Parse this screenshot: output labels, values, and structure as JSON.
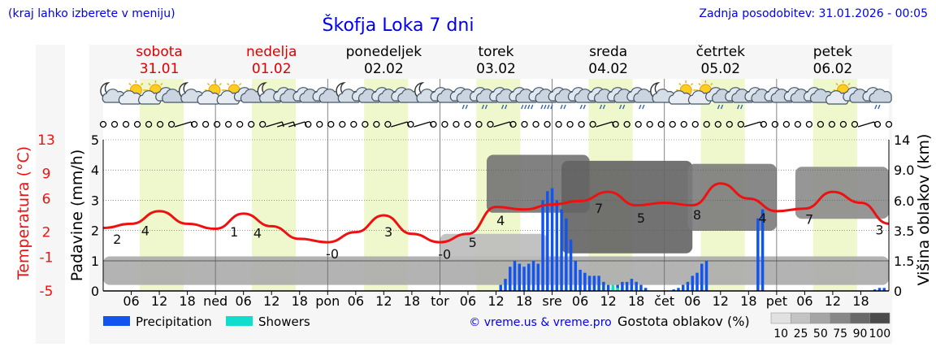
{
  "header": {
    "region_hint": "(kraj lahko izberete v meniju)",
    "title": "Škofja Loka 7 dni",
    "updated": "Zadnja posodobitev: 31.01.2026 - 00:05"
  },
  "colors": {
    "weekend_text": "#dd0000",
    "weekday_text": "#000000",
    "temp_line": "#ee1111",
    "precip_bar": "#1155ee",
    "showers_bar": "#11ddcc",
    "day_band": "#eef8cc",
    "link": "#0000ee"
  },
  "days": [
    {
      "name": "sobota",
      "date": "31.01",
      "weekend": true
    },
    {
      "name": "nedelja",
      "date": "01.02",
      "weekend": true
    },
    {
      "name": "ponedeljek",
      "date": "02.02",
      "weekend": false
    },
    {
      "name": "torek",
      "date": "03.02",
      "weekend": false
    },
    {
      "name": "sreda",
      "date": "04.02",
      "weekend": false
    },
    {
      "name": "četrtek",
      "date": "05.02",
      "weekend": false
    },
    {
      "name": "petek",
      "date": "06.02",
      "weekend": false
    }
  ],
  "weather_icons": [
    "night-cloudy",
    "day-partly-cloudy",
    "day-partly-cloudy",
    "cloudy",
    "night-cloudy",
    "day-partly-cloudy",
    "day-partly-cloudy",
    "cloudy",
    "night-cloudy",
    "cloudy",
    "cloudy",
    "cloudy",
    "night-cloudy",
    "cloudy",
    "cloudy",
    "cloudy",
    "night-cloudy",
    "cloudy",
    "light-rain",
    "light-rain",
    "light-rain",
    "heavy-rain",
    "heavy-rain",
    "light-rain",
    "light-rain",
    "light-rain",
    "light-rain",
    "light-rain",
    "night-cloudy",
    "day-partly-cloudy",
    "day-partly-cloudy",
    "light-rain",
    "light-rain",
    "cloudy",
    "cloudy",
    "cloudy",
    "cloudy",
    "day-partly-cloudy",
    "cloudy",
    "light-rain"
  ],
  "wind_markers": [
    "calm",
    "calm",
    "calm",
    "calm",
    "calm",
    "calm",
    "calm",
    "wind",
    "calm",
    "calm",
    "calm",
    "calm",
    "calm",
    "calm",
    "calm",
    "wind",
    "wind",
    "wind",
    "calm",
    "calm",
    "calm",
    "calm",
    "calm",
    "calm",
    "calm",
    "calm",
    "wind",
    "calm",
    "wind",
    "calm",
    "calm",
    "calm",
    "calm",
    "calm",
    "calm",
    "wind",
    "calm",
    "calm",
    "calm",
    "calm",
    "calm",
    "calm",
    "calm",
    "calm",
    "wind",
    "calm",
    "calm",
    "calm",
    "calm",
    "calm",
    "calm",
    "calm",
    "calm",
    "calm",
    "calm",
    "calm",
    "calm",
    "wind",
    "calm",
    "calm",
    "calm",
    "calm",
    "calm",
    "calm",
    "calm",
    "calm",
    "calm",
    "wind",
    "calm",
    "calm"
  ],
  "legend": {
    "precipitation": "Precipitation",
    "showers": "Showers",
    "credit": "© vreme.us & vreme.pro",
    "cloud_density_label": "Gostota oblakov (%)",
    "density_steps": [
      "10",
      "25",
      "50",
      "75",
      "90",
      "100"
    ]
  },
  "chart_data": {
    "type": "meteogram",
    "title": "Škofja Loka 7 dni",
    "time_axis": {
      "start": "31.01.2026 00:00",
      "hours": 168,
      "step_hours": 6,
      "tick_labels": [
        "06",
        "12",
        "18",
        "ned",
        "06",
        "12",
        "18",
        "pon",
        "06",
        "12",
        "18",
        "tor",
        "06",
        "12",
        "18",
        "sre",
        "06",
        "12",
        "18",
        "čet",
        "06",
        "12",
        "18",
        "pet",
        "06",
        "12",
        "18"
      ]
    },
    "axes": {
      "precip_label": "Padavine (mm/h)",
      "precip_ylim": [
        0,
        5
      ],
      "precip_ticks": [
        "0",
        "1",
        "2",
        "3",
        "4",
        "5"
      ],
      "temp_label": "Temperatura (°C)",
      "temp_ticks": [
        "-5",
        "-1",
        "2",
        "6",
        "9",
        "13"
      ],
      "cloud_label": "Višina oblakov (km)",
      "cloud_ylim": [
        0,
        15
      ],
      "cloud_ticks": [
        "0",
        "1.5",
        "3.5",
        "6.0",
        "9.0",
        "14"
      ]
    },
    "temperature": {
      "name": "Temperatura",
      "hours": [
        0,
        6,
        12,
        18,
        24,
        30,
        36,
        42,
        48,
        54,
        60,
        66,
        72,
        78,
        84,
        90,
        96,
        102,
        108,
        114,
        120,
        126,
        132,
        138,
        144,
        150,
        156,
        162,
        168
      ],
      "values": [
        2.5,
        3.0,
        4.5,
        3.0,
        2.4,
        4.2,
        2.7,
        1.2,
        0.8,
        2.0,
        4.0,
        1.8,
        0.8,
        1.8,
        5.0,
        4.7,
        5.3,
        5.7,
        6.8,
        5.2,
        5.5,
        5.2,
        7.8,
        6.0,
        4.5,
        4.8,
        6.8,
        5.5,
        3.0
      ],
      "value_labels": [
        {
          "hour": 3,
          "text": "2"
        },
        {
          "hour": 9,
          "text": "4"
        },
        {
          "hour": 28,
          "text": "1"
        },
        {
          "hour": 33,
          "text": "4"
        },
        {
          "hour": 49,
          "text": "-0"
        },
        {
          "hour": 61,
          "text": "3"
        },
        {
          "hour": 73,
          "text": "-0"
        },
        {
          "hour": 79,
          "text": "5"
        },
        {
          "hour": 85,
          "text": "4"
        },
        {
          "hour": 106,
          "text": "7"
        },
        {
          "hour": 115,
          "text": "5"
        },
        {
          "hour": 127,
          "text": "8"
        },
        {
          "hour": 141,
          "text": "4"
        },
        {
          "hour": 151,
          "text": "7"
        },
        {
          "hour": 166,
          "text": "3"
        }
      ]
    },
    "precipitation": {
      "name": "Precipitation",
      "hours": [
        85,
        86,
        87,
        88,
        89,
        90,
        91,
        92,
        93,
        94,
        95,
        96,
        97,
        98,
        99,
        100,
        101,
        102,
        103,
        104,
        105,
        106,
        107,
        108,
        109,
        110,
        111,
        112,
        113,
        114,
        115,
        116,
        122,
        123,
        124,
        125,
        126,
        127,
        128,
        129,
        140,
        141,
        165,
        166,
        167
      ],
      "values": [
        0.2,
        0.4,
        0.8,
        1.0,
        0.9,
        0.8,
        0.9,
        1.0,
        0.9,
        3.0,
        3.3,
        3.4,
        3.0,
        2.7,
        2.4,
        1.7,
        1.0,
        0.7,
        0.6,
        0.5,
        0.5,
        0.5,
        0.3,
        0.2,
        0.1,
        0.2,
        0.3,
        0.3,
        0.4,
        0.3,
        0.2,
        0.1,
        0.05,
        0.1,
        0.2,
        0.3,
        0.5,
        0.6,
        0.9,
        1.0,
        2.4,
        2.7,
        0.05,
        0.1,
        0.1
      ]
    },
    "showers": {
      "name": "Showers",
      "hours": [
        109,
        110
      ],
      "values": [
        0.2,
        0.1
      ]
    },
    "cloud_cover": {
      "name": "Gostota oblakov (%)",
      "unit": "%",
      "note": "cloud density by altitude (km) over time",
      "layers": [
        {
          "from_hour": 0,
          "to_hour": 168,
          "base_km": 0.3,
          "top_km": 1.8,
          "density": 40
        },
        {
          "from_hour": 72,
          "to_hour": 95,
          "base_km": 1.6,
          "top_km": 3.3,
          "density": 30
        },
        {
          "from_hour": 82,
          "to_hour": 104,
          "base_km": 5.0,
          "top_km": 11.5,
          "density": 75
        },
        {
          "from_hour": 98,
          "to_hour": 126,
          "base_km": 2.0,
          "top_km": 10.5,
          "density": 85
        },
        {
          "from_hour": 125,
          "to_hour": 144,
          "base_km": 3.5,
          "top_km": 10.0,
          "density": 70
        },
        {
          "from_hour": 148,
          "to_hour": 168,
          "base_km": 4.5,
          "top_km": 9.5,
          "density": 60
        }
      ]
    }
  }
}
